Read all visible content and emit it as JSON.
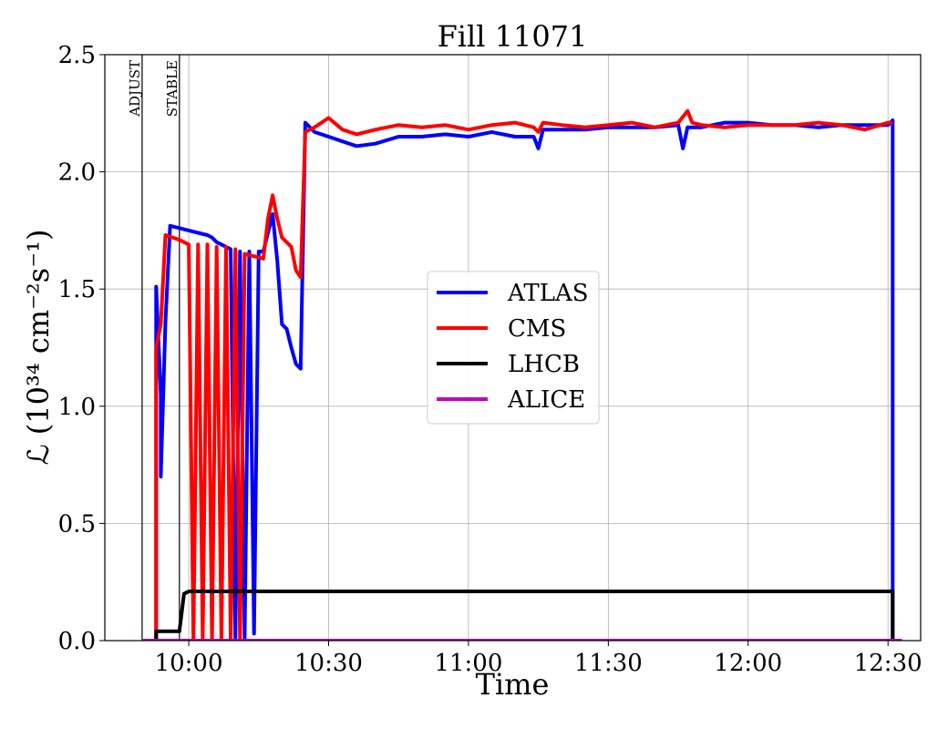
{
  "chart_data": {
    "type": "line",
    "title": "Fill 11071",
    "xlabel": "Time",
    "ylabel": "ℒ (10³⁴ cm⁻²s⁻¹)",
    "xlim": [
      "09:42",
      "12:37"
    ],
    "ylim": [
      0,
      2.5
    ],
    "x_ticks": [
      "10:00",
      "10:30",
      "11:00",
      "11:30",
      "12:00",
      "12:30"
    ],
    "y_ticks": [
      "0.0",
      "0.5",
      "1.0",
      "1.5",
      "2.0",
      "2.5"
    ],
    "grid": true,
    "legend_position": "center-right",
    "annotations": [
      {
        "label": "ADJUST",
        "x": "09:50"
      },
      {
        "label": "STABLE",
        "x": "09:58"
      }
    ],
    "series": [
      {
        "name": "ATLAS",
        "color": "#0000ff",
        "points": [
          [
            "09:50",
            0.0
          ],
          [
            "09:53",
            0.0
          ],
          [
            "09:53",
            1.51
          ],
          [
            "09:54",
            1.05
          ],
          [
            "09:54",
            0.7
          ],
          [
            "09:55",
            1.36
          ],
          [
            "09:56",
            1.77
          ],
          [
            "09:58",
            1.76
          ],
          [
            "10:00",
            1.75
          ],
          [
            "10:02",
            1.74
          ],
          [
            "10:04",
            1.73
          ],
          [
            "10:05",
            1.72
          ],
          [
            "10:06",
            1.7
          ],
          [
            "10:07",
            1.69
          ],
          [
            "10:08",
            1.68
          ],
          [
            "10:09",
            1.67
          ],
          [
            "10:10",
            0.01
          ],
          [
            "10:11",
            1.66
          ],
          [
            "10:12",
            0.01
          ],
          [
            "10:13",
            1.66
          ],
          [
            "10:14",
            0.03
          ],
          [
            "10:15",
            1.66
          ],
          [
            "10:16",
            1.66
          ],
          [
            "10:18",
            1.82
          ],
          [
            "10:19",
            1.62
          ],
          [
            "10:20",
            1.35
          ],
          [
            "10:21",
            1.33
          ],
          [
            "10:22",
            1.25
          ],
          [
            "10:23",
            1.18
          ],
          [
            "10:24",
            1.16
          ],
          [
            "10:25",
            2.21
          ],
          [
            "10:27",
            2.17
          ],
          [
            "10:30",
            2.15
          ],
          [
            "10:33",
            2.13
          ],
          [
            "10:36",
            2.11
          ],
          [
            "10:40",
            2.12
          ],
          [
            "10:45",
            2.15
          ],
          [
            "10:50",
            2.15
          ],
          [
            "10:55",
            2.16
          ],
          [
            "11:00",
            2.15
          ],
          [
            "11:05",
            2.17
          ],
          [
            "11:10",
            2.15
          ],
          [
            "11:14",
            2.15
          ],
          [
            "11:15",
            2.1
          ],
          [
            "11:16",
            2.18
          ],
          [
            "11:20",
            2.18
          ],
          [
            "11:25",
            2.18
          ],
          [
            "11:30",
            2.19
          ],
          [
            "11:35",
            2.19
          ],
          [
            "11:40",
            2.19
          ],
          [
            "11:45",
            2.2
          ],
          [
            "11:46",
            2.1
          ],
          [
            "11:47",
            2.19
          ],
          [
            "11:50",
            2.19
          ],
          [
            "11:55",
            2.21
          ],
          [
            "12:00",
            2.21
          ],
          [
            "12:05",
            2.2
          ],
          [
            "12:10",
            2.2
          ],
          [
            "12:15",
            2.19
          ],
          [
            "12:20",
            2.2
          ],
          [
            "12:25",
            2.2
          ],
          [
            "12:30",
            2.2
          ],
          [
            "12:31",
            2.22
          ],
          [
            "12:31",
            0.0
          ],
          [
            "12:33",
            0.0
          ]
        ]
      },
      {
        "name": "CMS",
        "color": "#ff0000",
        "points": [
          [
            "09:50",
            0.0
          ],
          [
            "09:53",
            0.0
          ],
          [
            "09:53",
            1.25
          ],
          [
            "09:54",
            1.35
          ],
          [
            "09:55",
            1.73
          ],
          [
            "09:58",
            1.71
          ],
          [
            "10:00",
            1.69
          ],
          [
            "10:01",
            0.0
          ],
          [
            "10:02",
            1.69
          ],
          [
            "10:03",
            0.0
          ],
          [
            "10:04",
            1.69
          ],
          [
            "10:05",
            0.0
          ],
          [
            "10:06",
            1.68
          ],
          [
            "10:07",
            0.0
          ],
          [
            "10:08",
            1.68
          ],
          [
            "10:09",
            0.0
          ],
          [
            "10:10",
            1.67
          ],
          [
            "10:11",
            0.0
          ],
          [
            "10:12",
            1.65
          ],
          [
            "10:14",
            1.64
          ],
          [
            "10:16",
            1.63
          ],
          [
            "10:17",
            1.8
          ],
          [
            "10:18",
            1.9
          ],
          [
            "10:19",
            1.8
          ],
          [
            "10:20",
            1.72
          ],
          [
            "10:22",
            1.68
          ],
          [
            "10:23",
            1.58
          ],
          [
            "10:24",
            1.55
          ],
          [
            "10:25",
            2.17
          ],
          [
            "10:27",
            2.19
          ],
          [
            "10:30",
            2.23
          ],
          [
            "10:33",
            2.18
          ],
          [
            "10:36",
            2.16
          ],
          [
            "10:40",
            2.18
          ],
          [
            "10:45",
            2.2
          ],
          [
            "10:50",
            2.19
          ],
          [
            "10:55",
            2.2
          ],
          [
            "11:00",
            2.18
          ],
          [
            "11:05",
            2.2
          ],
          [
            "11:10",
            2.21
          ],
          [
            "11:14",
            2.19
          ],
          [
            "11:15",
            2.17
          ],
          [
            "11:16",
            2.21
          ],
          [
            "11:20",
            2.2
          ],
          [
            "11:25",
            2.19
          ],
          [
            "11:30",
            2.2
          ],
          [
            "11:35",
            2.21
          ],
          [
            "11:40",
            2.19
          ],
          [
            "11:45",
            2.21
          ],
          [
            "11:47",
            2.26
          ],
          [
            "11:48",
            2.21
          ],
          [
            "11:50",
            2.2
          ],
          [
            "11:55",
            2.19
          ],
          [
            "12:00",
            2.2
          ],
          [
            "12:05",
            2.2
          ],
          [
            "12:10",
            2.2
          ],
          [
            "12:15",
            2.21
          ],
          [
            "12:20",
            2.2
          ],
          [
            "12:25",
            2.18
          ],
          [
            "12:30",
            2.21
          ],
          [
            "12:31",
            2.21
          ]
        ]
      },
      {
        "name": "LHCB",
        "color": "#000000",
        "points": [
          [
            "09:50",
            0.0
          ],
          [
            "09:53",
            0.0
          ],
          [
            "09:53",
            0.04
          ],
          [
            "09:56",
            0.04
          ],
          [
            "09:58",
            0.04
          ],
          [
            "09:59",
            0.2
          ],
          [
            "10:00",
            0.21
          ],
          [
            "10:05",
            0.21
          ],
          [
            "10:10",
            0.21
          ],
          [
            "10:15",
            0.21
          ],
          [
            "10:20",
            0.21
          ],
          [
            "10:30",
            0.21
          ],
          [
            "10:40",
            0.21
          ],
          [
            "10:50",
            0.21
          ],
          [
            "11:00",
            0.21
          ],
          [
            "11:10",
            0.21
          ],
          [
            "11:20",
            0.21
          ],
          [
            "11:30",
            0.21
          ],
          [
            "11:40",
            0.21
          ],
          [
            "11:50",
            0.21
          ],
          [
            "12:00",
            0.21
          ],
          [
            "12:10",
            0.21
          ],
          [
            "12:20",
            0.21
          ],
          [
            "12:30",
            0.21
          ],
          [
            "12:31",
            0.21
          ],
          [
            "12:31",
            0.0
          ],
          [
            "12:33",
            0.0
          ]
        ]
      },
      {
        "name": "ALICE",
        "color": "#bf00bf",
        "points": [
          [
            "09:50",
            0.0
          ],
          [
            "12:33",
            0.0
          ]
        ]
      }
    ]
  }
}
